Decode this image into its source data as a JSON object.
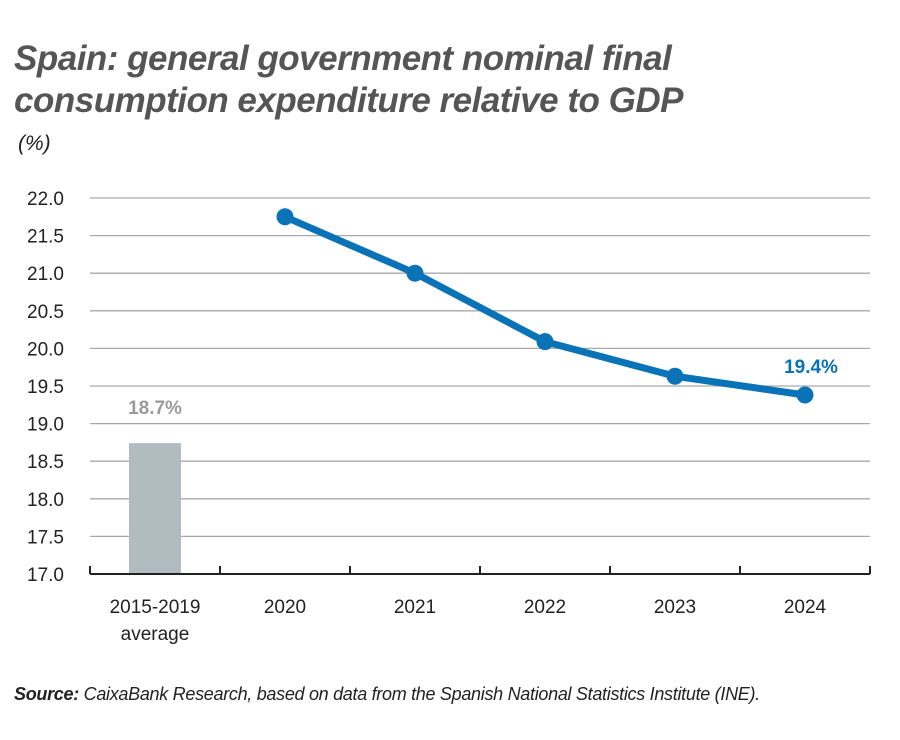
{
  "title": "Spain: general government nominal final consumption expenditure relative to GDP",
  "unit": "(%)",
  "source_label": "Source:",
  "source_text": " CaixaBank Research, based on data from the Spanish National Statistics Institute (INE).",
  "chart_data": {
    "type": "bar+line",
    "categories": [
      [
        "2015-2019",
        "average"
      ],
      [
        "2020"
      ],
      [
        "2021"
      ],
      [
        "2022"
      ],
      [
        "2023"
      ],
      [
        "2024"
      ]
    ],
    "bar": {
      "category_index": 0,
      "value": 18.74,
      "label": "18.7%",
      "color": "#b1bcc0"
    },
    "line": {
      "category_start": 1,
      "values": [
        21.75,
        21.0,
        20.09,
        19.63,
        19.38
      ],
      "end_label": "19.4%",
      "color": "#0a73b7"
    },
    "ylim": [
      17.0,
      22.0
    ],
    "yticks": [
      "17.0",
      "17.5",
      "18.0",
      "18.5",
      "19.0",
      "19.5",
      "20.0",
      "20.5",
      "21.0",
      "21.5",
      "22.0"
    ],
    "grid": true,
    "xlabel": "",
    "ylabel": ""
  }
}
